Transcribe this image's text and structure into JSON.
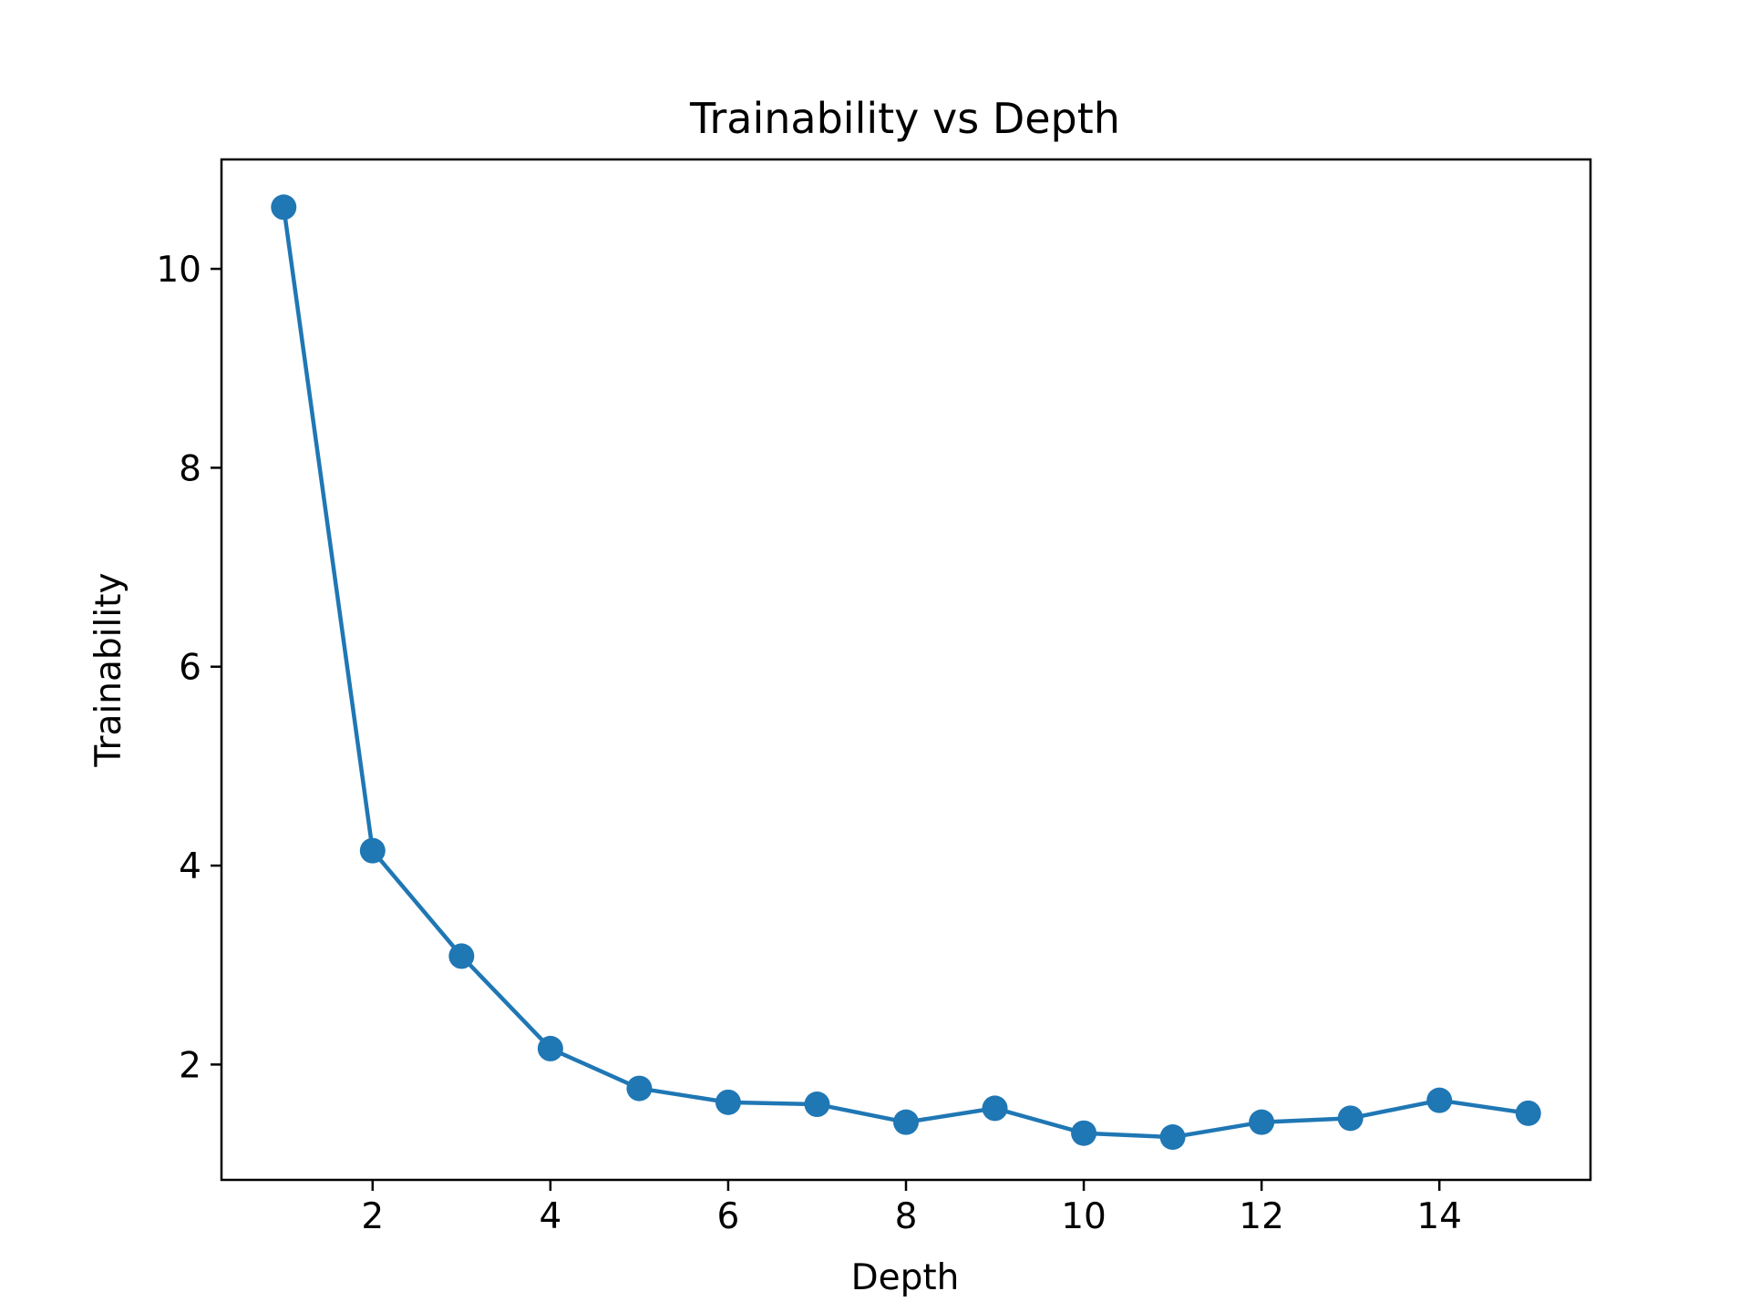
{
  "chart_data": {
    "type": "line",
    "title": "Trainability vs Depth",
    "xlabel": "Depth",
    "ylabel": "Trainability",
    "x": [
      1,
      2,
      3,
      4,
      5,
      6,
      7,
      8,
      9,
      10,
      11,
      12,
      13,
      14,
      15
    ],
    "series": [
      {
        "values": [
          10.62,
          4.15,
          3.09,
          2.16,
          1.76,
          1.62,
          1.6,
          1.42,
          1.56,
          1.31,
          1.27,
          1.42,
          1.46,
          1.64,
          1.51
        ],
        "color": "#1f77b4",
        "marker": "circle"
      }
    ],
    "xlim": [
      0.3,
      15.7
    ],
    "ylim": [
      0.84,
      11.1
    ],
    "xticks": [
      2,
      4,
      6,
      8,
      10,
      12,
      14
    ],
    "yticks": [
      2,
      4,
      6,
      8,
      10
    ],
    "grid": false,
    "legend": "none"
  }
}
